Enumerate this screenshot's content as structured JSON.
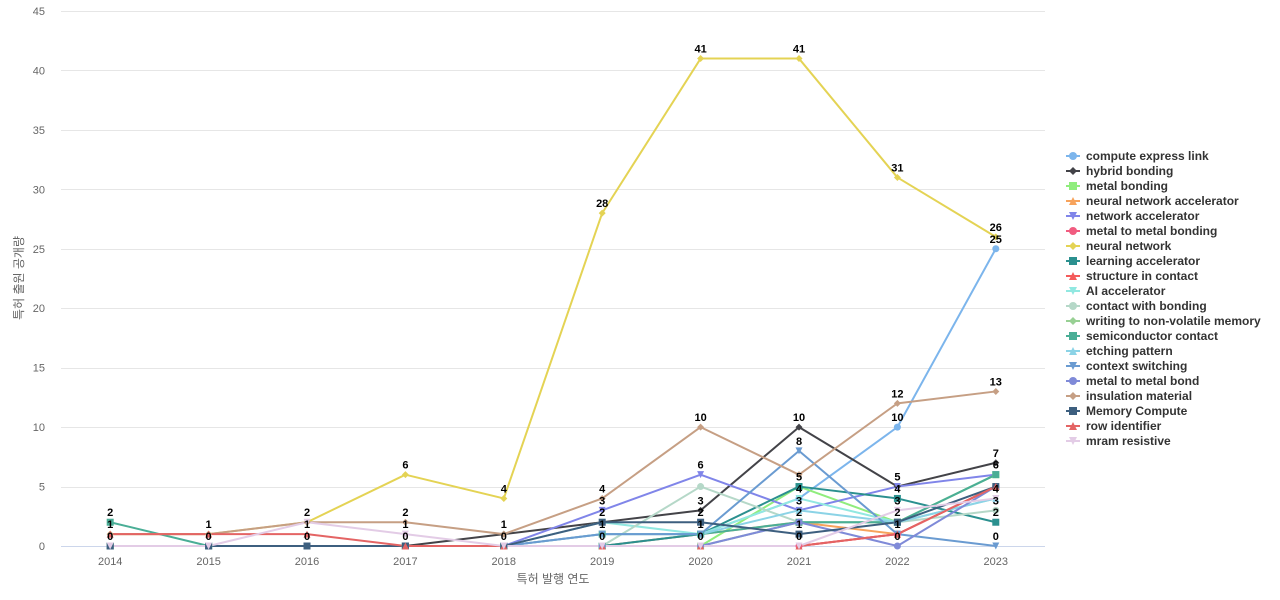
{
  "chart_data": {
    "type": "line",
    "xlabel": "특허 발행 연도",
    "ylabel": "특허 출원 공개량",
    "ylim": [
      0,
      45
    ],
    "yticks": [
      0,
      5,
      10,
      15,
      20,
      25,
      30,
      35,
      40,
      45
    ],
    "x": [
      "2014",
      "2015",
      "2016",
      "2017",
      "2018",
      "2019",
      "2020",
      "2021",
      "2022",
      "2023"
    ],
    "grid": "horizontal",
    "legend_position": "right",
    "series": [
      {
        "name": "compute express link",
        "color": "#7cb5ec",
        "marker": "circle",
        "values": [
          0,
          0,
          0,
          0,
          0,
          0,
          1,
          4,
          10,
          25
        ]
      },
      {
        "name": "hybrid bonding",
        "color": "#434348",
        "marker": "diamond",
        "values": [
          0,
          0,
          0,
          0,
          1,
          2,
          3,
          10,
          5,
          7
        ]
      },
      {
        "name": "metal bonding",
        "color": "#90ed7d",
        "marker": "square",
        "values": [
          0,
          0,
          0,
          0,
          0,
          0,
          0,
          5,
          2,
          6
        ]
      },
      {
        "name": "neural network accelerator",
        "color": "#f7a35c",
        "marker": "triangle",
        "values": [
          0,
          0,
          0,
          0,
          0,
          0,
          1,
          2,
          1,
          5
        ]
      },
      {
        "name": "network accelerator",
        "color": "#8085e9",
        "marker": "triangle-down",
        "values": [
          0,
          0,
          0,
          0,
          0,
          3,
          6,
          3,
          5,
          6
        ]
      },
      {
        "name": "metal to metal bonding",
        "color": "#f15c80",
        "marker": "circle",
        "values": [
          0,
          0,
          0,
          0,
          0,
          0,
          0,
          0,
          1,
          5
        ]
      },
      {
        "name": "neural network",
        "color": "#e4d354",
        "marker": "diamond",
        "values": [
          1,
          1,
          2,
          6,
          4,
          28,
          41,
          41,
          31,
          26
        ]
      },
      {
        "name": "learning accelerator",
        "color": "#2b908f",
        "marker": "square",
        "values": [
          0,
          0,
          0,
          0,
          0,
          0,
          1,
          5,
          4,
          2
        ]
      },
      {
        "name": "structure in contact",
        "color": "#f45b5b",
        "marker": "triangle",
        "values": [
          0,
          0,
          0,
          0,
          0,
          0,
          0,
          0,
          1,
          5
        ]
      },
      {
        "name": "AI accelerator",
        "color": "#91e8e1",
        "marker": "triangle-down",
        "values": [
          0,
          0,
          0,
          0,
          0,
          2,
          1,
          4,
          2,
          4
        ]
      },
      {
        "name": "contact with bonding",
        "color": "#b5d8c8",
        "marker": "circle",
        "values": [
          0,
          0,
          0,
          0,
          0,
          0,
          5,
          2,
          2,
          3
        ]
      },
      {
        "name": "writing to non-volatile memory",
        "color": "#98d094",
        "marker": "diamond",
        "values": [
          0,
          0,
          0,
          0,
          0,
          0,
          0,
          2,
          2,
          6
        ]
      },
      {
        "name": "semiconductor contact",
        "color": "#4aae96",
        "marker": "square",
        "values": [
          2,
          0,
          0,
          0,
          0,
          1,
          1,
          2,
          2,
          6
        ]
      },
      {
        "name": "etching pattern",
        "color": "#8bd3e6",
        "marker": "triangle",
        "values": [
          0,
          0,
          0,
          0,
          0,
          1,
          1,
          3,
          2,
          4
        ]
      },
      {
        "name": "context switching",
        "color": "#6a9bd1",
        "marker": "triangle-down",
        "values": [
          0,
          0,
          0,
          0,
          0,
          1,
          1,
          8,
          1,
          0
        ]
      },
      {
        "name": "metal to metal bond",
        "color": "#7f8ad8",
        "marker": "circle",
        "values": [
          0,
          0,
          0,
          0,
          0,
          0,
          0,
          2,
          0,
          5
        ]
      },
      {
        "name": "insulation material",
        "color": "#c69f84",
        "marker": "diamond",
        "values": [
          1,
          1,
          2,
          2,
          1,
          4,
          10,
          6,
          12,
          13
        ]
      },
      {
        "name": "Memory Compute",
        "color": "#3d5f7f",
        "marker": "square",
        "values": [
          0,
          0,
          0,
          0,
          0,
          2,
          2,
          1,
          2,
          5
        ]
      },
      {
        "name": "row identifier",
        "color": "#e46464",
        "marker": "triangle",
        "values": [
          1,
          1,
          1,
          0,
          0,
          0,
          0,
          0,
          1,
          5
        ]
      },
      {
        "name": "mram resistive",
        "color": "#e3cce6",
        "marker": "triangle-down",
        "values": [
          0,
          0,
          2,
          1,
          0,
          0,
          0,
          0,
          3,
          4
        ]
      }
    ],
    "annotations": [
      {
        "x": "2014",
        "label": "2"
      },
      {
        "x": "2014",
        "label": "1"
      },
      {
        "x": "2014",
        "label": "0"
      },
      {
        "x": "2015",
        "label": "1"
      },
      {
        "x": "2015",
        "label": "0"
      },
      {
        "x": "2016",
        "label": "2"
      },
      {
        "x": "2016",
        "label": "1"
      },
      {
        "x": "2016",
        "label": "0"
      },
      {
        "x": "2017",
        "label": "6"
      },
      {
        "x": "2017",
        "label": "2"
      },
      {
        "x": "2017",
        "label": "1"
      },
      {
        "x": "2017",
        "label": "0"
      },
      {
        "x": "2018",
        "label": "4"
      },
      {
        "x": "2018",
        "label": "1"
      },
      {
        "x": "2018",
        "label": "0"
      },
      {
        "x": "2019",
        "label": "28"
      },
      {
        "x": "2019",
        "label": "4"
      },
      {
        "x": "2019",
        "label": "3"
      },
      {
        "x": "2019",
        "label": "2"
      },
      {
        "x": "2019",
        "label": "1"
      },
      {
        "x": "2019",
        "label": "0"
      },
      {
        "x": "2020",
        "label": "41"
      },
      {
        "x": "2020",
        "label": "10"
      },
      {
        "x": "2020",
        "label": "6"
      },
      {
        "x": "2020",
        "label": "3"
      },
      {
        "x": "2020",
        "label": "2"
      },
      {
        "x": "2020",
        "label": "1"
      },
      {
        "x": "2020",
        "label": "0"
      },
      {
        "x": "2021",
        "label": "41"
      },
      {
        "x": "2021",
        "label": "10"
      },
      {
        "x": "2021",
        "label": "8"
      },
      {
        "x": "2021",
        "label": "5"
      },
      {
        "x": "2021",
        "label": "4"
      },
      {
        "x": "2021",
        "label": "3"
      },
      {
        "x": "2021",
        "label": "2"
      },
      {
        "x": "2021",
        "label": "1"
      },
      {
        "x": "2021",
        "label": "0"
      },
      {
        "x": "2022",
        "label": "31"
      },
      {
        "x": "2022",
        "label": "12"
      },
      {
        "x": "2022",
        "label": "10"
      },
      {
        "x": "2022",
        "label": "5"
      },
      {
        "x": "2022",
        "label": "4"
      },
      {
        "x": "2022",
        "label": "3"
      },
      {
        "x": "2022",
        "label": "2"
      },
      {
        "x": "2022",
        "label": "1"
      },
      {
        "x": "2022",
        "label": "0"
      },
      {
        "x": "2023",
        "label": "26"
      },
      {
        "x": "2023",
        "label": "25"
      },
      {
        "x": "2023",
        "label": "13"
      },
      {
        "x": "2023",
        "label": "7"
      },
      {
        "x": "2023",
        "label": "6"
      },
      {
        "x": "2023",
        "label": "4"
      },
      {
        "x": "2023",
        "label": "3"
      },
      {
        "x": "2023",
        "label": "2"
      },
      {
        "x": "2023",
        "label": "0"
      }
    ]
  }
}
